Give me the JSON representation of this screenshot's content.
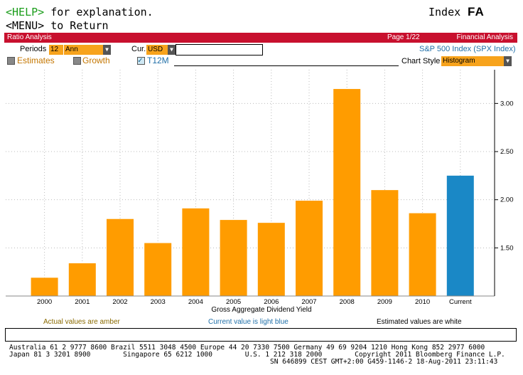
{
  "header": {
    "help_key": "<HELP>",
    "help_text": " for explanation.",
    "menu_line": "<MENU> to Return",
    "index_label": "Index",
    "function_code": "FA"
  },
  "titlebar": {
    "left": "Ratio Analysis",
    "page": "Page 1/22",
    "right": "Financial Analysis"
  },
  "controls": {
    "periods_label": "Periods",
    "periods_value": "12",
    "period_type": "Ann",
    "currency_label": "Cur.",
    "currency_value": "USD",
    "currency_extra": "",
    "security": "S&P 500 Index (SPX Index)",
    "estimates_label": "Estimates",
    "growth_label": "Growth",
    "t12m_label": "T12M",
    "chart_style_label": "Chart Style",
    "chart_style_value": "Histogram"
  },
  "colors": {
    "actual": "#ff9c00",
    "current": "#1a88c6",
    "titlebar": "#c8102e"
  },
  "chart_data": {
    "type": "bar",
    "categories": [
      "2000",
      "2001",
      "2002",
      "2003",
      "2004",
      "2005",
      "2006",
      "2007",
      "2008",
      "2009",
      "2010",
      "Current"
    ],
    "values": [
      1.19,
      1.34,
      1.8,
      1.55,
      1.91,
      1.79,
      1.76,
      1.99,
      3.15,
      2.1,
      1.86,
      2.25
    ],
    "xlabel": "Gross Aggregate Dividend Yield",
    "ylim": [
      1.0,
      3.35
    ],
    "yticks": [
      1.5,
      2.0,
      2.5,
      3.0
    ],
    "ytick_labels": [
      "1.50",
      "2.00",
      "2.50",
      "3.00"
    ],
    "grid": true
  },
  "legend": {
    "actual": "Actual values are amber",
    "current": "Current value is light blue",
    "estimated": "Estimated values are white"
  },
  "footer": {
    "line1": "Australia 61 2 9777 8600 Brazil 5511 3048 4500 Europe 44 20 7330 7500 Germany 49 69 9204 1210 Hong Kong 852 2977 6000",
    "line2": "Japan 81 3 3201 8900        Singapore 65 6212 1000        U.S. 1 212 318 2000        Copyright 2011 Bloomberg Finance L.P.",
    "line3": "SN 646899 CEST GMT+2:00 G459-1146-2 18-Aug-2011 23:11:43"
  }
}
